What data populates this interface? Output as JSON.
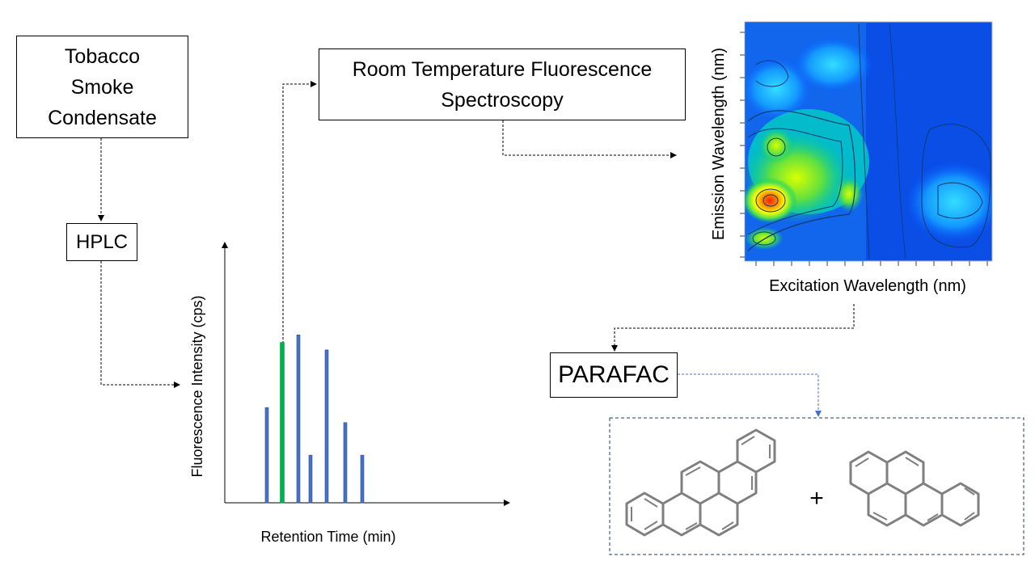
{
  "nodes": {
    "tobacco": {
      "label": "Tobacco\nSmoke\nCondensate"
    },
    "hplc": {
      "label": "HPLC"
    },
    "rtf": {
      "label": "Room Temperature Fluorescence\nSpectroscopy"
    },
    "parafac": {
      "label": "PARAFAC"
    }
  },
  "plus_sign": "+",
  "chromatogram": {
    "xlabel": "Retention Time (min)",
    "ylabel": "Fluorescence Intensity (cps)",
    "bar_color": "#4472c4",
    "highlight_color": "#00b050"
  },
  "eem_plot": {
    "xlabel": "Excitation Wavelength (nm)",
    "ylabel": "Emission Wavelength (nm)"
  },
  "colors": {
    "arrow": "#000000",
    "parafac_arrow": "#4472c4",
    "molecule_stroke": "#7f7f7f"
  },
  "chart_data": {
    "type": "bar",
    "xlabel": "Retention Time (min)",
    "ylabel": "Fluorescence Intensity (cps)",
    "series": [
      {
        "values": [
          0.38,
          0.64,
          0.67,
          0.19,
          0.61,
          0.32,
          0.19
        ]
      }
    ],
    "highlight_index": 1
  }
}
